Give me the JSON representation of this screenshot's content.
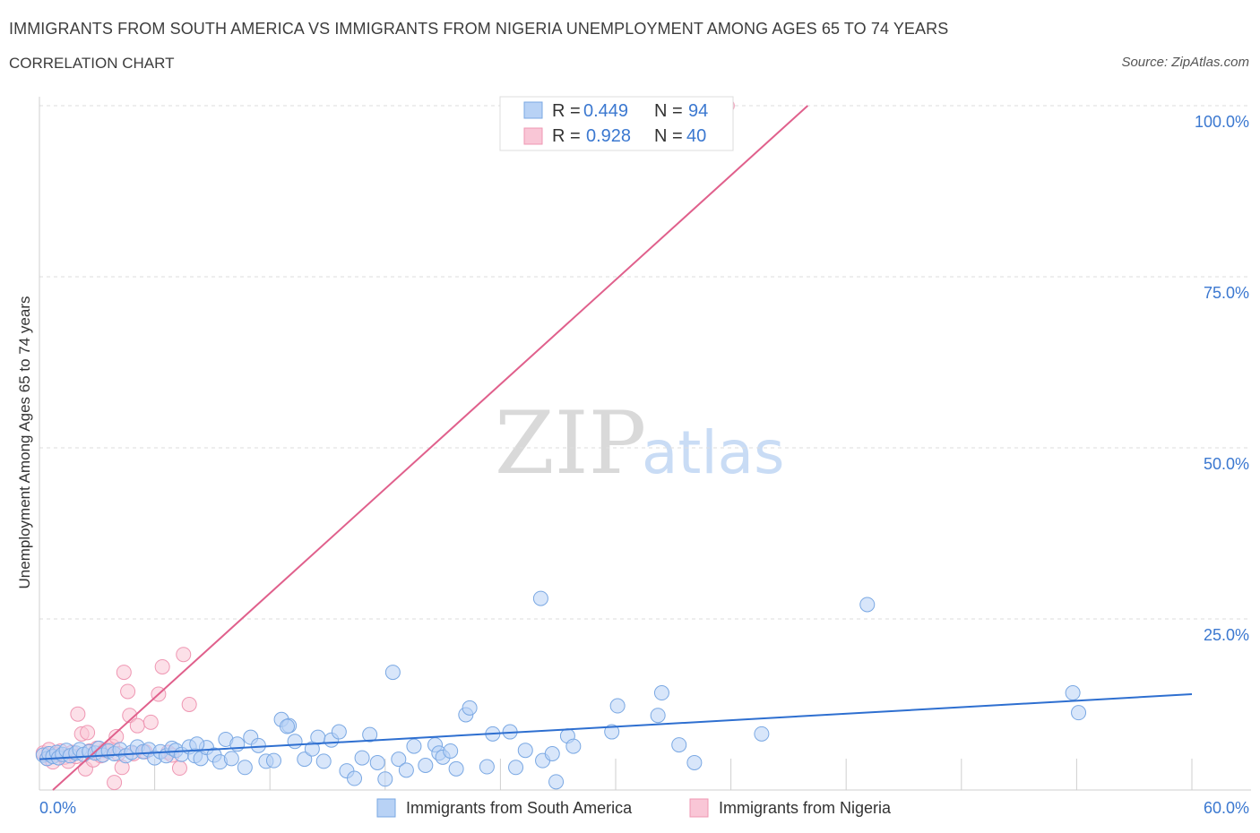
{
  "header": {
    "title": "IMMIGRANTS FROM SOUTH AMERICA VS IMMIGRANTS FROM NIGERIA UNEMPLOYMENT AMONG AGES 65 TO 74 YEARS",
    "subtitle": "CORRELATION CHART",
    "source": "Source: ZipAtlas.com"
  },
  "watermark": {
    "zip": "ZIP",
    "atlas": "atlas"
  },
  "stats": {
    "south_america": {
      "r_label": "R =",
      "r_value": "0.449",
      "n_label": "N =",
      "n_value": "94"
    },
    "nigeria": {
      "r_label": "R =",
      "r_value": "0.928",
      "n_label": "N =",
      "n_value": "40"
    }
  },
  "colors": {
    "south_america_fill": "#b8d2f5",
    "south_america_stroke": "#7aa8e3",
    "south_america_line": "#2e6fd0",
    "nigeria_fill": "#f9c6d6",
    "nigeria_stroke": "#ef97b3",
    "nigeria_line": "#e0608c",
    "tick_text": "#3b78d0"
  },
  "chart_data": {
    "type": "scatter",
    "title": "IMMIGRANTS FROM SOUTH AMERICA VS IMMIGRANTS FROM NIGERIA UNEMPLOYMENT AMONG AGES 65 TO 74 YEARS",
    "xlabel": "",
    "ylabel": "Unemployment Among Ages 65 to 74 years",
    "xlim": [
      0,
      60
    ],
    "ylim": [
      0,
      100
    ],
    "x_tick_labels": [
      "0.0%",
      "60.0%"
    ],
    "y_tick_labels": [
      "25.0%",
      "50.0%",
      "75.0%",
      "100.0%"
    ],
    "y_tick_values": [
      25,
      50,
      75,
      100
    ],
    "grid": true,
    "legend_position": "bottom",
    "series": [
      {
        "name": "Immigrants from South America",
        "trend": {
          "x": [
            0,
            60
          ],
          "y": [
            4.5,
            14.0
          ]
        },
        "points": [
          [
            0.2,
            5.1
          ],
          [
            0.4,
            4.6
          ],
          [
            0.5,
            5.3
          ],
          [
            0.7,
            4.9
          ],
          [
            0.9,
            5.5
          ],
          [
            1.0,
            4.7
          ],
          [
            1.2,
            5.2
          ],
          [
            1.4,
            5.8
          ],
          [
            1.6,
            5.0
          ],
          [
            1.9,
            5.4
          ],
          [
            2.1,
            5.9
          ],
          [
            2.3,
            5.2
          ],
          [
            2.6,
            5.6
          ],
          [
            2.9,
            5.4
          ],
          [
            3.1,
            6.1
          ],
          [
            3.3,
            5.1
          ],
          [
            3.6,
            5.7
          ],
          [
            3.9,
            5.3
          ],
          [
            4.2,
            5.9
          ],
          [
            4.5,
            5.0
          ],
          [
            4.8,
            5.5
          ],
          [
            5.1,
            6.3
          ],
          [
            5.4,
            5.6
          ],
          [
            5.7,
            5.9
          ],
          [
            6.0,
            4.7
          ],
          [
            6.3,
            5.6
          ],
          [
            6.6,
            5.0
          ],
          [
            6.9,
            6.1
          ],
          [
            7.1,
            5.8
          ],
          [
            7.4,
            5.2
          ],
          [
            7.8,
            6.3
          ],
          [
            8.1,
            5.0
          ],
          [
            8.4,
            4.6
          ],
          [
            8.7,
            6.2
          ],
          [
            9.1,
            5.1
          ],
          [
            9.4,
            4.1
          ],
          [
            9.7,
            7.4
          ],
          [
            10.0,
            4.6
          ],
          [
            10.3,
            6.7
          ],
          [
            10.7,
            3.3
          ],
          [
            11.0,
            7.7
          ],
          [
            11.4,
            6.5
          ],
          [
            11.8,
            4.2
          ],
          [
            12.2,
            4.3
          ],
          [
            12.6,
            10.3
          ],
          [
            13.0,
            9.4
          ],
          [
            13.3,
            7.1
          ],
          [
            13.8,
            4.5
          ],
          [
            14.2,
            6.0
          ],
          [
            14.5,
            7.7
          ],
          [
            14.8,
            4.2
          ],
          [
            15.2,
            7.3
          ],
          [
            15.6,
            8.5
          ],
          [
            16.0,
            2.8
          ],
          [
            16.4,
            1.7
          ],
          [
            16.8,
            4.7
          ],
          [
            17.2,
            8.1
          ],
          [
            17.6,
            4.0
          ],
          [
            18.0,
            1.6
          ],
          [
            18.4,
            17.2
          ],
          [
            18.7,
            4.5
          ],
          [
            19.1,
            2.9
          ],
          [
            19.5,
            6.4
          ],
          [
            20.1,
            3.6
          ],
          [
            20.6,
            6.6
          ],
          [
            20.8,
            5.4
          ],
          [
            21.0,
            4.8
          ],
          [
            21.4,
            5.7
          ],
          [
            21.7,
            3.1
          ],
          [
            22.2,
            11.0
          ],
          [
            22.4,
            12.0
          ],
          [
            23.3,
            3.4
          ],
          [
            23.6,
            8.2
          ],
          [
            24.5,
            8.5
          ],
          [
            24.8,
            3.3
          ],
          [
            25.3,
            5.8
          ],
          [
            26.1,
            28.0
          ],
          [
            26.2,
            4.3
          ],
          [
            26.7,
            5.3
          ],
          [
            26.9,
            1.2
          ],
          [
            27.5,
            7.9
          ],
          [
            27.8,
            6.4
          ],
          [
            29.8,
            8.5
          ],
          [
            30.1,
            12.3
          ],
          [
            32.2,
            10.9
          ],
          [
            32.4,
            14.2
          ],
          [
            33.3,
            6.6
          ],
          [
            34.1,
            4.0
          ],
          [
            37.6,
            8.2
          ],
          [
            43.1,
            27.1
          ],
          [
            53.8,
            14.2
          ],
          [
            54.1,
            11.3
          ],
          [
            12.9,
            9.3
          ],
          [
            8.2,
            6.7
          ]
        ]
      },
      {
        "name": "Immigrants from Nigeria",
        "trend": {
          "x": [
            0.7,
            40.0
          ],
          "y": [
            0,
            100
          ]
        },
        "points": [
          [
            0.2,
            5.4
          ],
          [
            0.4,
            4.6
          ],
          [
            0.5,
            5.9
          ],
          [
            0.7,
            4.1
          ],
          [
            0.9,
            5.2
          ],
          [
            1.1,
            5.7
          ],
          [
            1.3,
            4.8
          ],
          [
            1.5,
            4.2
          ],
          [
            1.7,
            5.5
          ],
          [
            1.9,
            4.9
          ],
          [
            2.0,
            11.1
          ],
          [
            2.2,
            8.2
          ],
          [
            2.4,
            3.1
          ],
          [
            2.5,
            8.4
          ],
          [
            2.6,
            5.7
          ],
          [
            2.8,
            4.4
          ],
          [
            3.0,
            6.1
          ],
          [
            3.2,
            5.0
          ],
          [
            3.4,
            5.8
          ],
          [
            3.6,
            5.9
          ],
          [
            3.8,
            6.4
          ],
          [
            3.9,
            1.1
          ],
          [
            4.0,
            7.8
          ],
          [
            4.1,
            5.3
          ],
          [
            4.3,
            3.3
          ],
          [
            4.4,
            17.2
          ],
          [
            4.6,
            14.4
          ],
          [
            4.7,
            10.9
          ],
          [
            4.9,
            5.3
          ],
          [
            5.1,
            9.4
          ],
          [
            5.5,
            5.6
          ],
          [
            5.8,
            9.9
          ],
          [
            6.2,
            14.0
          ],
          [
            6.4,
            18.0
          ],
          [
            6.7,
            5.5
          ],
          [
            6.9,
            5.1
          ],
          [
            7.3,
            3.2
          ],
          [
            7.5,
            19.8
          ],
          [
            7.8,
            12.5
          ],
          [
            35.8,
            100.0
          ]
        ]
      }
    ]
  },
  "legend": {
    "items": [
      {
        "label": "Immigrants from South America"
      },
      {
        "label": "Immigrants from Nigeria"
      }
    ]
  }
}
